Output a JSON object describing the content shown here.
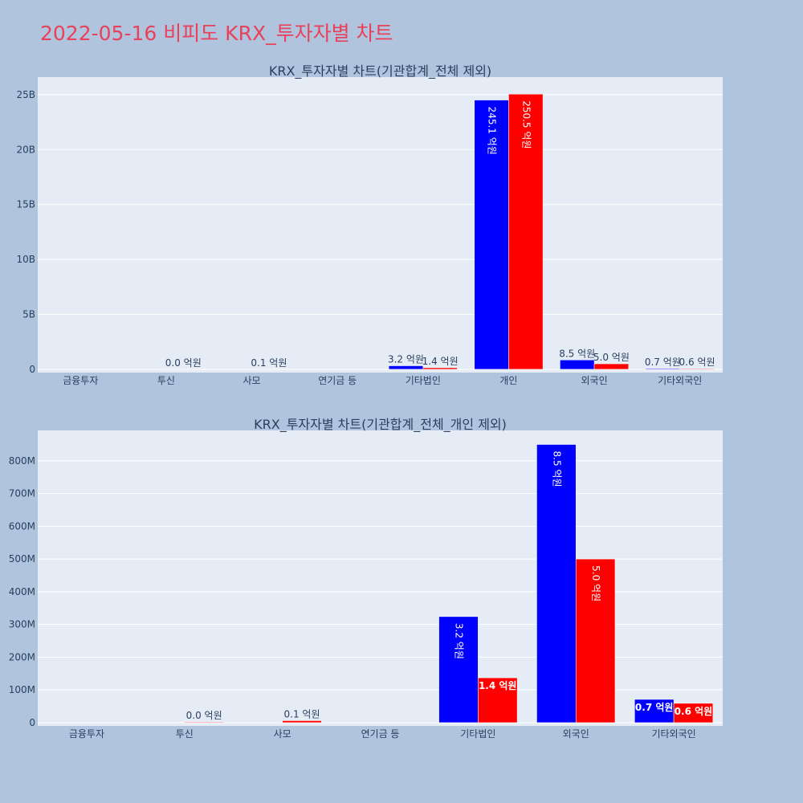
{
  "page": {
    "title": "2022-05-16 비피도 KRX_투자자별 차트"
  },
  "chart_data": [
    {
      "type": "bar",
      "title": "KRX_투자자별 차트(기관합계_전체 제외)",
      "categories": [
        "금융투자",
        "투신",
        "사모",
        "연기금 등",
        "기타법인",
        "개인",
        "외국인",
        "기타외국인"
      ],
      "series": [
        {
          "color": "#0000ff",
          "values": [
            0,
            0,
            0,
            0,
            320000000,
            24510000000,
            850000000,
            70000000
          ],
          "labels": [
            "",
            "",
            "",
            "",
            "3.2 억원",
            "245.1 억원",
            "8.5 억원",
            "0.7 억원"
          ]
        },
        {
          "color": "#ff0000",
          "values": [
            0,
            3000000,
            10000000,
            0,
            140000000,
            25050000000,
            500000000,
            60000000
          ],
          "labels": [
            "",
            "0.0 억원",
            "0.1 억원",
            "",
            "1.4 억원",
            "250.5 억원",
            "5.0 억원",
            "0.6 억원"
          ]
        }
      ],
      "ylim": [
        -300000000,
        26600000000
      ],
      "yticks": [
        0,
        5000000000,
        10000000000,
        15000000000,
        20000000000,
        25000000000
      ],
      "ytick_labels": [
        "0",
        "5B",
        "10B",
        "15B",
        "20B",
        "25B"
      ],
      "grid": true,
      "legend": "none"
    },
    {
      "type": "bar",
      "title": "KRX_투자자별 차트(기관합계_전체_개인 제외)",
      "categories": [
        "금융투자",
        "투신",
        "사모",
        "연기금 등",
        "기타법인",
        "외국인",
        "기타외국인"
      ],
      "series": [
        {
          "color": "#0000ff",
          "values": [
            0,
            0,
            0,
            0,
            324000000,
            850000000,
            71000000
          ],
          "labels": [
            "",
            "",
            "",
            "",
            "3.2 억원",
            "8.5 억원",
            "0.7 억원"
          ]
        },
        {
          "color": "#ff0000",
          "values": [
            0,
            2000000,
            6000000,
            0,
            137000000,
            500000000,
            59000000
          ],
          "labels": [
            "",
            "0.0 억원",
            "0.1 억원",
            "",
            "1.4 억원",
            "5.0 억원",
            "0.6 억원"
          ]
        }
      ],
      "ylim": [
        -10000000,
        893000000
      ],
      "yticks": [
        0,
        100000000,
        200000000,
        300000000,
        400000000,
        500000000,
        600000000,
        700000000,
        800000000
      ],
      "ytick_labels": [
        "0",
        "100M",
        "200M",
        "300M",
        "400M",
        "500M",
        "600M",
        "700M",
        "800M"
      ],
      "grid": true,
      "legend": "none"
    }
  ]
}
